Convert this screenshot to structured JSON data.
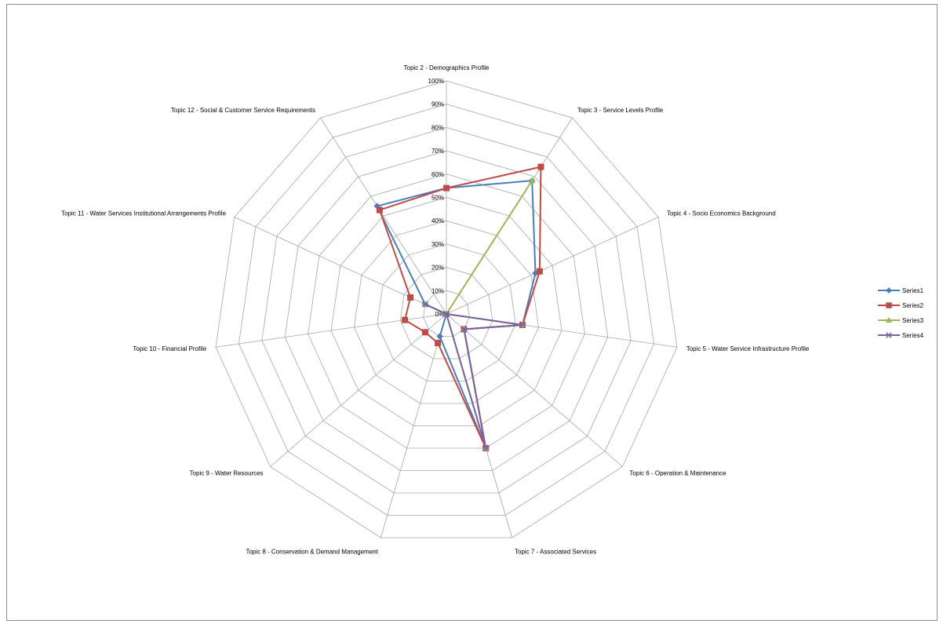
{
  "chart_data": {
    "type": "radar",
    "categories": [
      "Topic 2 - Demographics Profile",
      "Topic 3 - Service Levels Profile",
      "Topic 4 - Socio Economics Background",
      "Topic 5 - Water Service Infrastructure Profile",
      "Topic 6 - Operation & Maintenance",
      "Topic 7 - Associated Services",
      "Topic 8 - Conservation & Demand Management",
      "Topic 9 - Water Resources",
      "Topic 10 - Financial Profile",
      "Topic 11 - Water Services Institutional Arrangements Profile",
      "Topic 12 - Social & Customer Service Requirements"
    ],
    "tick_labels": [
      "0%",
      "10%",
      "20%",
      "30%",
      "40%",
      "50%",
      "60%",
      "70%",
      "80%",
      "90%",
      "100%"
    ],
    "ylim": [
      0,
      1
    ],
    "series": [
      {
        "name": "Series1",
        "color": "#4a7ebb",
        "marker": "diamond",
        "values": [
          0.54,
          0.68,
          0.42,
          0.33,
          0.1,
          0.6,
          0.1,
          0.0,
          0.0,
          0.1,
          0.55
        ]
      },
      {
        "name": "Series2",
        "color": "#be4b48",
        "marker": "square",
        "values": [
          0.54,
          0.75,
          0.44,
          0.33,
          0.1,
          0.6,
          0.13,
          0.12,
          0.18,
          0.17,
          0.53
        ]
      },
      {
        "name": "Series3",
        "color": "#98b954",
        "marker": "triangle",
        "values": [
          0.0,
          0.68,
          0.0,
          0.33,
          0.1,
          0.6,
          0.0,
          0.0,
          0.0,
          0.1,
          0.0
        ]
      },
      {
        "name": "Series4",
        "color": "#7d60a0",
        "marker": "x",
        "values": [
          0.0,
          0.0,
          0.0,
          0.33,
          0.1,
          0.6,
          0.0,
          0.0,
          0.0,
          0.1,
          0.0
        ]
      }
    ],
    "legend_position": "right",
    "grid": true
  }
}
